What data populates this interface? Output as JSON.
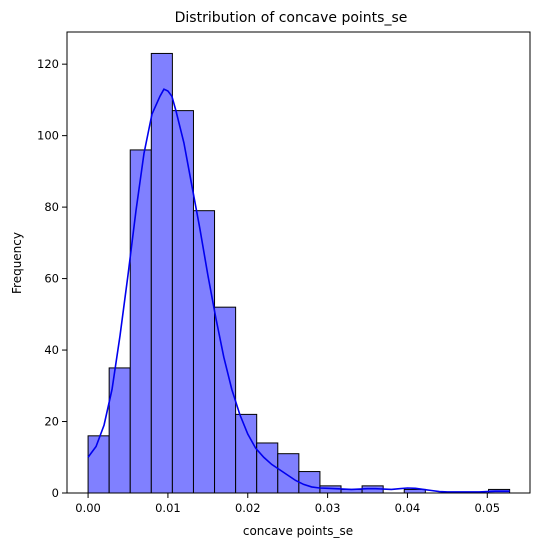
{
  "chart_data": {
    "type": "bar",
    "subtype": "histogram with density curve",
    "title": "Distribution of concave points_se",
    "xlabel": "concave points_se",
    "ylabel": "Frequency",
    "xlim": [
      -0.00264,
      0.05535
    ],
    "ylim": [
      0,
      129
    ],
    "xticks": [
      0.0,
      0.01,
      0.02,
      0.03,
      0.04,
      0.05
    ],
    "xtick_labels": [
      "0.00",
      "0.01",
      "0.02",
      "0.03",
      "0.04",
      "0.05"
    ],
    "yticks": [
      0,
      20,
      40,
      60,
      80,
      100,
      120
    ],
    "ytick_labels": [
      "0",
      "20",
      "40",
      "60",
      "80",
      "100",
      "120"
    ],
    "grid": false,
    "legend": null,
    "bins": {
      "edges": [
        0.0,
        0.00264,
        0.00528,
        0.00792,
        0.01056,
        0.0132,
        0.01584,
        0.01848,
        0.02112,
        0.02376,
        0.0264,
        0.02904,
        0.03168,
        0.03432,
        0.03696,
        0.0396,
        0.04224,
        0.04488,
        0.04752,
        0.05016,
        0.0528
      ],
      "counts": [
        16,
        35,
        96,
        123,
        107,
        79,
        52,
        22,
        14,
        11,
        6,
        2,
        1,
        2,
        0,
        1,
        0,
        0,
        0,
        1
      ]
    },
    "kde": {
      "x": [
        0.0,
        0.001,
        0.002,
        0.003,
        0.004,
        0.005,
        0.006,
        0.007,
        0.008,
        0.009,
        0.0095,
        0.01,
        0.0105,
        0.011,
        0.012,
        0.013,
        0.014,
        0.015,
        0.016,
        0.017,
        0.018,
        0.019,
        0.02,
        0.021,
        0.022,
        0.023,
        0.024,
        0.025,
        0.026,
        0.027,
        0.028,
        0.029,
        0.03,
        0.031,
        0.032,
        0.033,
        0.034,
        0.035,
        0.036,
        0.037,
        0.038,
        0.039,
        0.04,
        0.041,
        0.042,
        0.043,
        0.044,
        0.045,
        0.046,
        0.047,
        0.048,
        0.049,
        0.05,
        0.051,
        0.052,
        0.0528
      ],
      "y": [
        10,
        13,
        19,
        29,
        44,
        61,
        79,
        95,
        106,
        111,
        113,
        112.5,
        111,
        107,
        98,
        86,
        74,
        61,
        49,
        38,
        29,
        22,
        16.5,
        12.5,
        10,
        8,
        6.5,
        5,
        3.5,
        2.4,
        1.7,
        1.4,
        1.3,
        1.2,
        1.1,
        1.0,
        1.1,
        1.2,
        1.2,
        1.1,
        1.0,
        1.2,
        1.4,
        1.3,
        1.0,
        0.7,
        0.4,
        0.3,
        0.3,
        0.3,
        0.3,
        0.3,
        0.4,
        0.5,
        0.5,
        0.5
      ]
    },
    "colors": {
      "bar_fill": "#8080ff",
      "bar_edge": "#000000",
      "kde_line": "#0000ee"
    }
  }
}
